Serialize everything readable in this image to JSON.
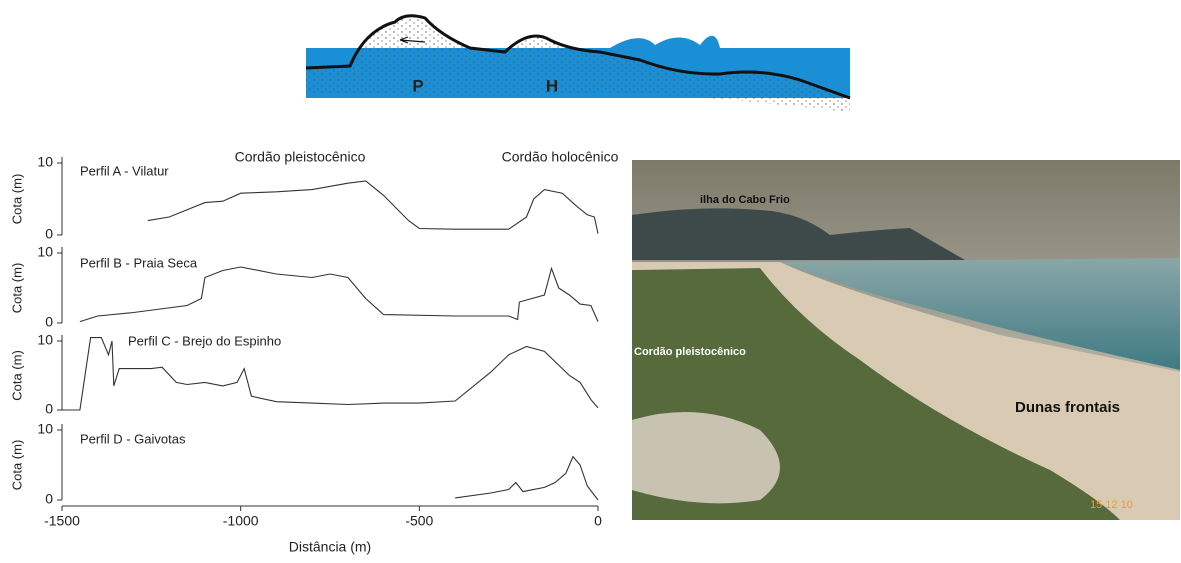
{
  "diagram": {
    "labels": [
      "P",
      "H"
    ]
  },
  "chart_data": [
    {
      "type": "line",
      "title": "Perfil A - Vilatur",
      "annotations": [
        "Cordão pleistocênico",
        "Cordão holocênico"
      ],
      "ylabel": "Cota (m)",
      "color": "#333333",
      "x": [
        -1260,
        -1200,
        -1150,
        -1100,
        -1050,
        -1000,
        -900,
        -800,
        -700,
        -650,
        -600,
        -530,
        -500,
        -400,
        -250,
        -200,
        -180,
        -150,
        -100,
        -60,
        -30,
        -10,
        0
      ],
      "values": [
        2,
        2.5,
        3.5,
        4.5,
        4.7,
        5.8,
        6,
        6.3,
        7.2,
        7.5,
        5.5,
        2,
        0.9,
        0.8,
        0.8,
        2.5,
        5,
        6.3,
        5.8,
        4,
        2.8,
        2.5,
        0.2
      ],
      "xlim": [
        -1500,
        0
      ],
      "ylim": [
        0,
        10
      ],
      "yticks": [
        0,
        10
      ]
    },
    {
      "type": "line",
      "title": "Perfil B - Praia Seca",
      "ylabel": "Cota (m)",
      "color": "#333333",
      "x": [
        -1450,
        -1400,
        -1300,
        -1150,
        -1110,
        -1100,
        -1050,
        -1000,
        -900,
        -800,
        -750,
        -700,
        -650,
        -600,
        -400,
        -250,
        -225,
        -220,
        -150,
        -130,
        -110,
        -80,
        -50,
        -20,
        0
      ],
      "values": [
        0.2,
        1,
        1.5,
        2.5,
        3.5,
        6.5,
        7.5,
        8,
        7,
        6.5,
        7,
        6.5,
        3.5,
        1.2,
        1,
        1,
        0.5,
        3,
        4,
        7.8,
        5,
        4,
        2.7,
        2.5,
        0.2
      ],
      "xlim": [
        -1500,
        0
      ],
      "ylim": [
        0,
        10
      ],
      "yticks": [
        0,
        10
      ]
    },
    {
      "type": "line",
      "title": "Perfil C - Brejo do Espinho",
      "ylabel": "Cota (m)",
      "color": "#333333",
      "x": [
        -1500,
        -1450,
        -1420,
        -1390,
        -1370,
        -1360,
        -1355,
        -1340,
        -1300,
        -1250,
        -1220,
        -1180,
        -1150,
        -1100,
        -1050,
        -1010,
        -990,
        -970,
        -900,
        -800,
        -700,
        -600,
        -500,
        -400,
        -300,
        -250,
        -200,
        -150,
        -110,
        -80,
        -50,
        -20,
        0
      ],
      "values": [
        0,
        0,
        10.5,
        10.5,
        8,
        10,
        3.5,
        6,
        6,
        6,
        6.2,
        4,
        3.7,
        4,
        3.5,
        4,
        6,
        2,
        1.2,
        1,
        0.8,
        1,
        1,
        1.3,
        5.5,
        8,
        9.2,
        8.5,
        6.5,
        5,
        4,
        1.5,
        0.3
      ],
      "xlim": [
        -1500,
        0
      ],
      "ylim": [
        0,
        10
      ],
      "yticks": [
        0,
        10
      ]
    },
    {
      "type": "line",
      "title": "Perfil D - Gaivotas",
      "ylabel": "Cota (m)",
      "xlabel": "Distância (m)",
      "color": "#333333",
      "x": [
        -400,
        -300,
        -250,
        -230,
        -210,
        -150,
        -120,
        -90,
        -70,
        -50,
        -30,
        0
      ],
      "values": [
        0.3,
        1,
        1.5,
        2.5,
        1.2,
        1.8,
        2.5,
        3.8,
        6.2,
        5,
        2,
        0
      ],
      "xlim": [
        -1500,
        0
      ],
      "ylim": [
        0,
        10
      ],
      "yticks": [
        0,
        10
      ],
      "xticks": [
        -1500,
        -1000,
        -500,
        0
      ]
    }
  ],
  "photo": {
    "labels": [
      "ilha do Cabo Frio",
      "Cordão pleistocênico",
      "Dunas frontais"
    ],
    "date": "15 12 10"
  }
}
